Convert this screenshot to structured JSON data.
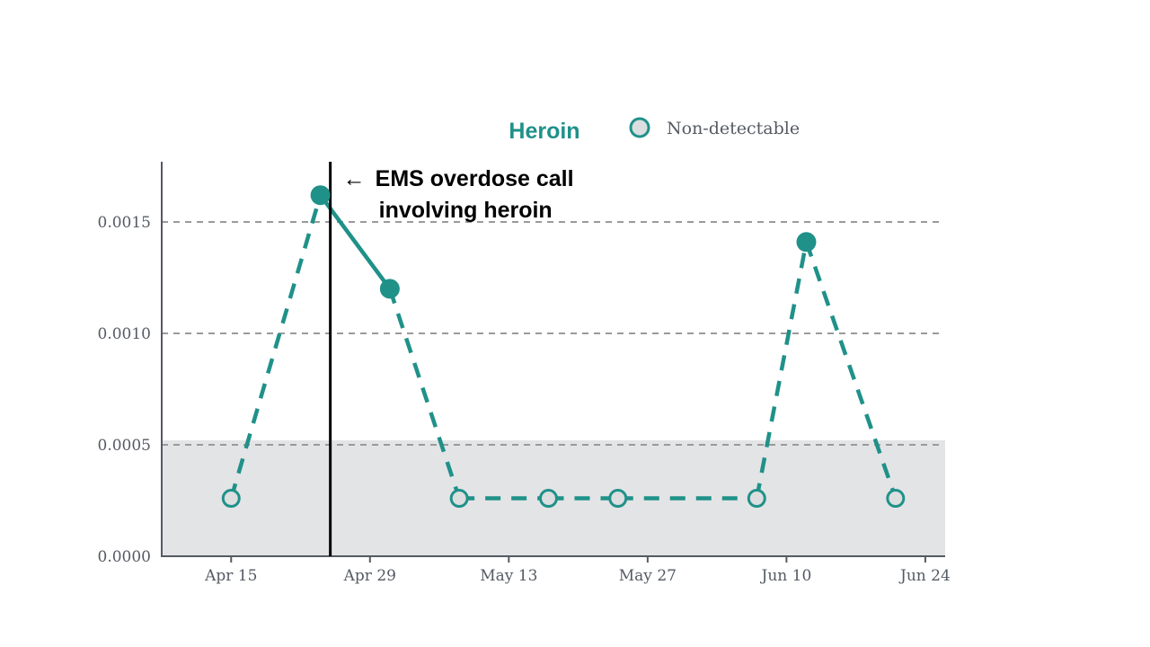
{
  "chart_data": {
    "type": "line",
    "title": "Heroin",
    "legend": [
      {
        "label": "Non-detectable",
        "marker": "hollow-circle"
      }
    ],
    "legend_placement": "top",
    "xlabel": "",
    "ylabel": "",
    "x_ticks": [
      "Apr 15",
      "Apr 29",
      "May 13",
      "May 27",
      "Jun 10",
      "Jun 24"
    ],
    "x_tick_dates": [
      "2021-04-15",
      "2021-04-29",
      "2021-05-13",
      "2021-05-27",
      "2021-06-10",
      "2021-06-24"
    ],
    "y_ticks": [
      "0.0000",
      "0.0005",
      "0.0010",
      "0.0015"
    ],
    "y_tick_values": [
      0,
      0.0005,
      0.001,
      0.0015
    ],
    "ylim": [
      0,
      0.00177
    ],
    "xlim": [
      "2021-04-08",
      "2021-06-26"
    ],
    "grid": "horizontal dashed",
    "non_detectable_band": [
      0,
      0.00052
    ],
    "series": [
      {
        "points": [
          {
            "date": "2021-04-15",
            "value": 0.00026,
            "detected": false
          },
          {
            "date": "2021-04-24",
            "value": 0.00162,
            "detected": true
          },
          {
            "date": "2021-05-01",
            "value": 0.0012,
            "detected": true
          },
          {
            "date": "2021-05-08",
            "value": 0.00026,
            "detected": false
          },
          {
            "date": "2021-05-17",
            "value": 0.00026,
            "detected": false
          },
          {
            "date": "2021-05-24",
            "value": 0.00026,
            "detected": false
          },
          {
            "date": "2021-06-07",
            "value": 0.00026,
            "detected": false
          },
          {
            "date": "2021-06-12",
            "value": 0.00141,
            "detected": true
          },
          {
            "date": "2021-06-21",
            "value": 0.00026,
            "detected": false
          }
        ]
      }
    ],
    "annotation": {
      "date": "2021-04-25",
      "lines": [
        "EMS overdose call",
        "involving heroin"
      ],
      "arrow": "←"
    }
  },
  "colors": {
    "series": "#1f9189",
    "band": "#e3e4e6",
    "grid": "#9a9a9a",
    "axis": "#555a63",
    "marker_fill_nd": "#dcdedf",
    "annotation_line": "#000000"
  }
}
